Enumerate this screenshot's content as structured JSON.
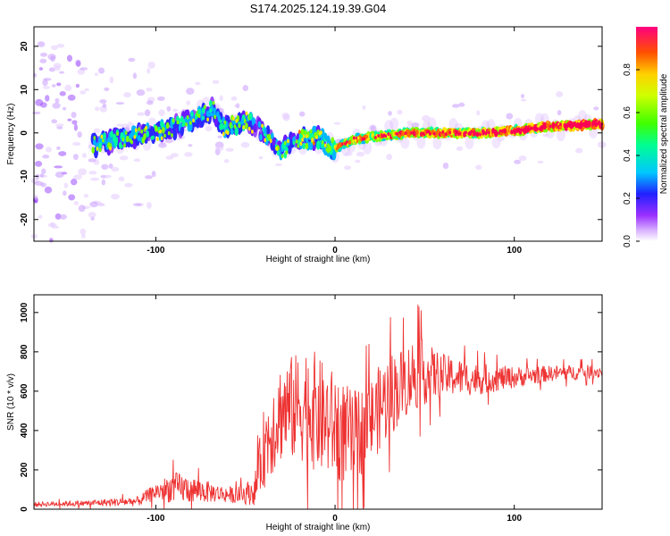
{
  "title": "S174.2025.124.19.39.G04",
  "chart_data": [
    {
      "type": "heatmap",
      "xlabel": "Height of straight line (km)",
      "ylabel": "Frequency (Hz)",
      "xlim": [
        -168,
        149
      ],
      "ylim": [
        -25,
        24.5
      ],
      "xticks": [
        -100,
        0,
        100
      ],
      "yticks": [
        20,
        10,
        0,
        -10,
        -20
      ],
      "colorbar": {
        "label": "Normalized spectral amplitude",
        "range": [
          0.0,
          1.0
        ],
        "ticks": [
          0.0,
          0.2,
          0.4,
          0.6,
          0.8
        ]
      },
      "ridge": {
        "description_points_x": [
          -135,
          -120,
          -100,
          -85,
          -75,
          -68,
          -62,
          -50,
          -40,
          -30,
          -20,
          -10,
          0,
          10,
          20,
          40,
          60,
          80,
          100,
          120,
          149
        ],
        "description_points_y": [
          -3,
          -1.5,
          0,
          2,
          4,
          5.5,
          1,
          3,
          0,
          -4,
          -1.5,
          -1,
          -3.5,
          -1.5,
          -1,
          0,
          0,
          0,
          0.5,
          1.5,
          2
        ]
      }
    },
    {
      "type": "line",
      "xlabel": "Height of straight line (km)",
      "ylabel": "SNR (10 * v/v)",
      "xlim": [
        -168,
        149
      ],
      "ylim": [
        0,
        1090
      ],
      "xticks": [
        -100,
        0,
        100
      ],
      "yticks": [
        0,
        200,
        400,
        600,
        800,
        1000
      ],
      "series": [
        {
          "color": "#ee3333",
          "envelope_x": [
            -168,
            -140,
            -110,
            -100,
            -90,
            -80,
            -65,
            -55,
            -45,
            -40,
            -35,
            -30,
            -20,
            -15,
            -10,
            0,
            10,
            20,
            30,
            40,
            45,
            50,
            60,
            80,
            100,
            120,
            149
          ],
          "envelope_mean": [
            25,
            30,
            40,
            90,
            110,
            100,
            80,
            70,
            90,
            300,
            420,
            500,
            520,
            540,
            480,
            420,
            360,
            450,
            580,
            650,
            700,
            690,
            680,
            660,
            670,
            690,
            700
          ],
          "envelope_spread": [
            12,
            15,
            25,
            45,
            80,
            70,
            45,
            40,
            70,
            200,
            250,
            260,
            280,
            320,
            300,
            280,
            240,
            220,
            220,
            180,
            200,
            160,
            110,
            80,
            55,
            40,
            35
          ]
        }
      ]
    }
  ]
}
